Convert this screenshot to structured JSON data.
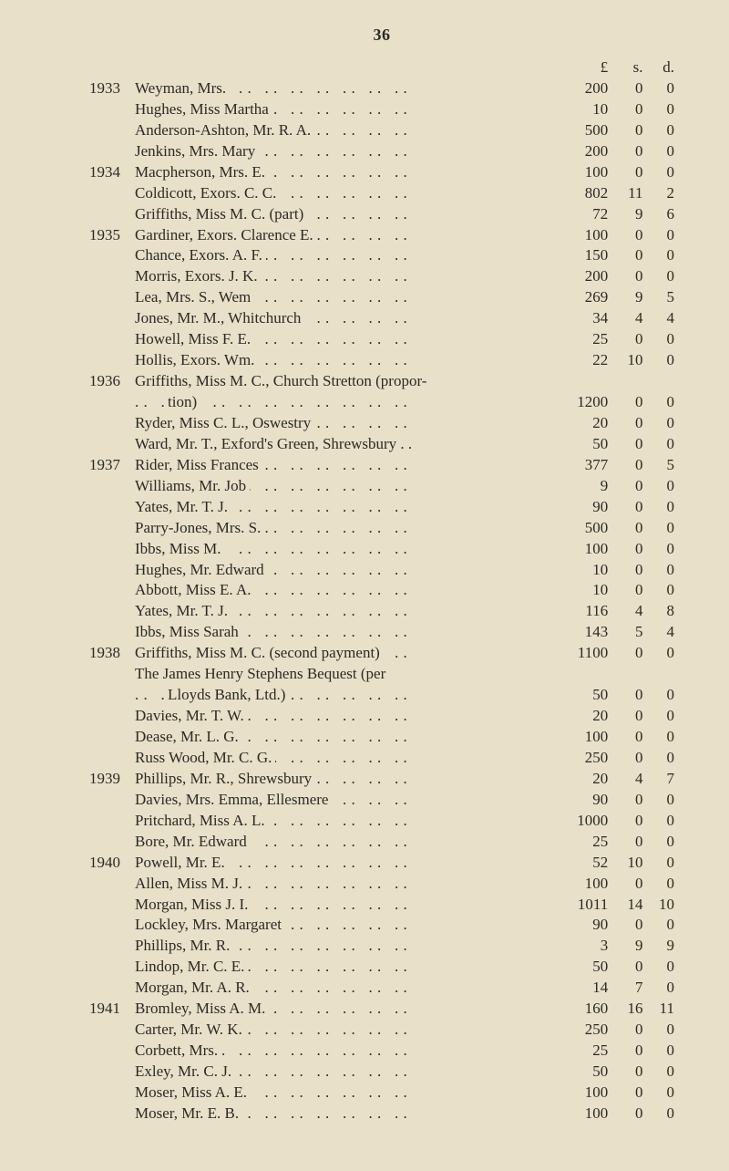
{
  "page_number": "36",
  "currency_headers": {
    "L": "£",
    "s": "s.",
    "d": "d."
  },
  "colors": {
    "background": "#e8e0c8",
    "text": "#2a2a26"
  },
  "typography": {
    "family": "Times New Roman",
    "body_size_pt": 13,
    "line_height": 1.35
  },
  "rows": [
    {
      "year": "1933",
      "desc": "Weyman, Mrs.",
      "leader": true,
      "L": "200",
      "s": "0",
      "d": "0"
    },
    {
      "year": "",
      "desc": "Hughes, Miss Martha",
      "leader": true,
      "L": "10",
      "s": "0",
      "d": "0"
    },
    {
      "year": "",
      "desc": "Anderson-Ashton, Mr. R. A.",
      "leader": true,
      "L": "500",
      "s": "0",
      "d": "0"
    },
    {
      "year": "",
      "desc": "Jenkins, Mrs. Mary",
      "leader": true,
      "L": "200",
      "s": "0",
      "d": "0"
    },
    {
      "year": "1934",
      "desc": "Macpherson, Mrs. E.",
      "leader": true,
      "L": "100",
      "s": "0",
      "d": "0"
    },
    {
      "year": "",
      "desc": "Coldicott, Exors. C. C.",
      "leader": true,
      "L": "802",
      "s": "11",
      "d": "2"
    },
    {
      "year": "",
      "desc": "Griffiths, Miss M. C. (part)",
      "leader": true,
      "L": "72",
      "s": "9",
      "d": "6"
    },
    {
      "year": "1935",
      "desc": "Gardiner, Exors. Clarence E.",
      "leader": true,
      "L": "100",
      "s": "0",
      "d": "0"
    },
    {
      "year": "",
      "desc": "Chance, Exors. A. F.",
      "leader": true,
      "L": "150",
      "s": "0",
      "d": "0"
    },
    {
      "year": "",
      "desc": "Morris, Exors. J. K.",
      "leader": true,
      "L": "200",
      "s": "0",
      "d": "0"
    },
    {
      "year": "",
      "desc": "Lea, Mrs. S., Wem",
      "leader": true,
      "L": "269",
      "s": "9",
      "d": "5"
    },
    {
      "year": "",
      "desc": "Jones, Mr. M., Whitchurch",
      "leader": true,
      "L": "34",
      "s": "4",
      "d": "4"
    },
    {
      "year": "",
      "desc": "Howell, Miss F. E.",
      "leader": true,
      "L": "25",
      "s": "0",
      "d": "0"
    },
    {
      "year": "",
      "desc": "Hollis, Exors. Wm.",
      "leader": true,
      "L": "22",
      "s": "10",
      "d": "0"
    },
    {
      "year": "1936",
      "desc": "Griffiths, Miss M. C., Church Stretton (propor-",
      "leader": false,
      "L": "",
      "s": "",
      "d": ""
    },
    {
      "year": "",
      "cont": true,
      "desc": "tion)",
      "leader": true,
      "L": "1200",
      "s": "0",
      "d": "0"
    },
    {
      "year": "",
      "desc": "Ryder, Miss C. L., Oswestry",
      "leader": true,
      "L": "20",
      "s": "0",
      "d": "0"
    },
    {
      "year": "",
      "desc": "Ward, Mr. T., Exford's Green, Shrewsbury . .",
      "leader": false,
      "L": "50",
      "s": "0",
      "d": "0"
    },
    {
      "year": "1937",
      "desc": "Rider, Miss Frances",
      "leader": true,
      "L": "377",
      "s": "0",
      "d": "5"
    },
    {
      "year": "",
      "desc": "Williams, Mr. Job",
      "leader": true,
      "L": "9",
      "s": "0",
      "d": "0"
    },
    {
      "year": "",
      "desc": "Yates, Mr. T. J.",
      "leader": true,
      "L": "90",
      "s": "0",
      "d": "0"
    },
    {
      "year": "",
      "desc": "Parry-Jones, Mrs. S.",
      "leader": true,
      "L": "500",
      "s": "0",
      "d": "0"
    },
    {
      "year": "",
      "desc": "Ibbs, Miss M.",
      "leader": true,
      "L": "100",
      "s": "0",
      "d": "0"
    },
    {
      "year": "",
      "desc": "Hughes, Mr. Edward",
      "leader": true,
      "L": "10",
      "s": "0",
      "d": "0"
    },
    {
      "year": "",
      "desc": "Abbott, Miss E. A.",
      "leader": true,
      "L": "10",
      "s": "0",
      "d": "0"
    },
    {
      "year": "",
      "desc": "Yates, Mr. T. J.",
      "leader": true,
      "L": "116",
      "s": "4",
      "d": "8"
    },
    {
      "year": "",
      "desc": "Ibbs, Miss Sarah",
      "leader": true,
      "L": "143",
      "s": "5",
      "d": "4"
    },
    {
      "year": "1938",
      "desc": "Griffiths, Miss M. C. (second payment)",
      "leader": true,
      "L": "1100",
      "s": "0",
      "d": "0"
    },
    {
      "year": "",
      "desc": "The James Henry Stephens Bequest (per",
      "leader": false,
      "L": "",
      "s": "",
      "d": ""
    },
    {
      "year": "",
      "cont": true,
      "desc": "Lloyds Bank, Ltd.)",
      "leader": true,
      "L": "50",
      "s": "0",
      "d": "0"
    },
    {
      "year": "",
      "desc": "Davies, Mr. T. W.",
      "leader": true,
      "L": "20",
      "s": "0",
      "d": "0"
    },
    {
      "year": "",
      "desc": "Dease, Mr. L. G.",
      "leader": true,
      "L": "100",
      "s": "0",
      "d": "0"
    },
    {
      "year": "",
      "desc": "Russ Wood, Mr. C. G.",
      "leader": true,
      "L": "250",
      "s": "0",
      "d": "0"
    },
    {
      "year": "1939",
      "desc": "Phillips, Mr. R., Shrewsbury",
      "leader": true,
      "L": "20",
      "s": "4",
      "d": "7"
    },
    {
      "year": "",
      "desc": "Davies, Mrs. Emma, Ellesmere",
      "leader": true,
      "L": "90",
      "s": "0",
      "d": "0"
    },
    {
      "year": "",
      "desc": "Pritchard, Miss A. L.",
      "leader": true,
      "L": "1000",
      "s": "0",
      "d": "0"
    },
    {
      "year": "",
      "desc": "Bore, Mr. Edward",
      "leader": true,
      "L": "25",
      "s": "0",
      "d": "0"
    },
    {
      "year": "1940",
      "desc": "Powell, Mr. E.",
      "leader": true,
      "L": "52",
      "s": "10",
      "d": "0"
    },
    {
      "year": "",
      "desc": "Allen, Miss M. J.",
      "leader": true,
      "L": "100",
      "s": "0",
      "d": "0"
    },
    {
      "year": "",
      "desc": "Morgan, Miss J. I.",
      "leader": true,
      "L": "1011",
      "s": "14",
      "d": "10"
    },
    {
      "year": "",
      "desc": "Lockley, Mrs. Margaret",
      "leader": true,
      "L": "90",
      "s": "0",
      "d": "0"
    },
    {
      "year": "",
      "desc": "Phillips, Mr. R.",
      "leader": true,
      "L": "3",
      "s": "9",
      "d": "9"
    },
    {
      "year": "",
      "desc": "Lindop, Mr. C. E.",
      "leader": true,
      "L": "50",
      "s": "0",
      "d": "0"
    },
    {
      "year": "",
      "desc": "Morgan, Mr. A. R.",
      "leader": true,
      "L": "14",
      "s": "7",
      "d": "0"
    },
    {
      "year": "1941",
      "desc": "Bromley, Miss A. M.",
      "leader": true,
      "L": "160",
      "s": "16",
      "d": "11"
    },
    {
      "year": "",
      "desc": "Carter, Mr. W. K.",
      "leader": true,
      "L": "250",
      "s": "0",
      "d": "0"
    },
    {
      "year": "",
      "desc": "Corbett, Mrs.",
      "leader": true,
      "L": "25",
      "s": "0",
      "d": "0"
    },
    {
      "year": "",
      "desc": "Exley, Mr. C. J.",
      "leader": true,
      "L": "50",
      "s": "0",
      "d": "0"
    },
    {
      "year": "",
      "desc": "Moser, Miss A. E.",
      "leader": true,
      "L": "100",
      "s": "0",
      "d": "0"
    },
    {
      "year": "",
      "desc": "Moser, Mr. E. B.",
      "leader": true,
      "L": "100",
      "s": "0",
      "d": "0"
    }
  ]
}
